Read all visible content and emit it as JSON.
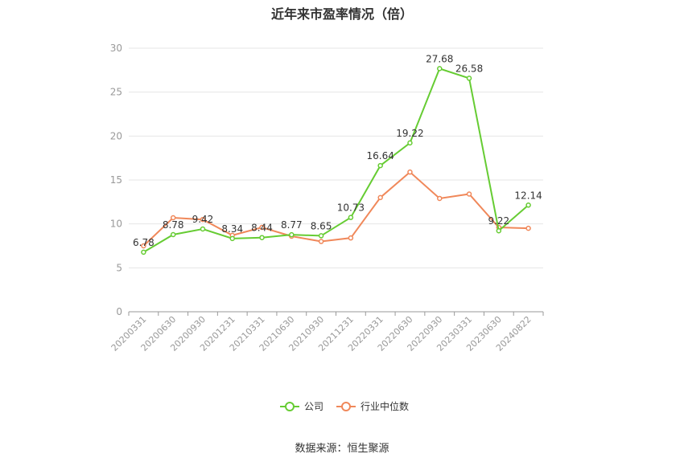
{
  "chart_data": {
    "type": "line",
    "title": "近年来市盈率情况（倍）",
    "source": "数据来源：恒生聚源",
    "xlabel": "",
    "ylabel": "",
    "ylim": [
      0,
      30
    ],
    "yticks": [
      0,
      5,
      10,
      15,
      20,
      25,
      30
    ],
    "grid": true,
    "legend_position": "bottom",
    "categories": [
      "20200331",
      "20200630",
      "20200930",
      "20201231",
      "20210331",
      "20210630",
      "20210930",
      "20211231",
      "20220331",
      "20220630",
      "20220930",
      "20230331",
      "20230630",
      "20240822"
    ],
    "series": [
      {
        "name": "公司",
        "color": "#66cc33",
        "values": [
          6.78,
          8.78,
          9.42,
          8.34,
          8.44,
          8.77,
          8.65,
          10.73,
          16.64,
          19.22,
          27.68,
          26.58,
          9.22,
          12.14
        ],
        "labels": [
          "6.78",
          "8.78",
          "9.42",
          "8.34",
          "8.44",
          "8.77",
          "8.65",
          "10.73",
          "16.64",
          "19.22",
          "27.68",
          "26.58",
          "9.22",
          "12.14"
        ]
      },
      {
        "name": "行业中位数",
        "color": "#f0885a",
        "values": [
          7.5,
          10.7,
          10.5,
          8.7,
          9.6,
          8.6,
          8.0,
          8.4,
          13.0,
          15.9,
          12.9,
          13.4,
          9.6,
          9.5
        ]
      }
    ]
  }
}
